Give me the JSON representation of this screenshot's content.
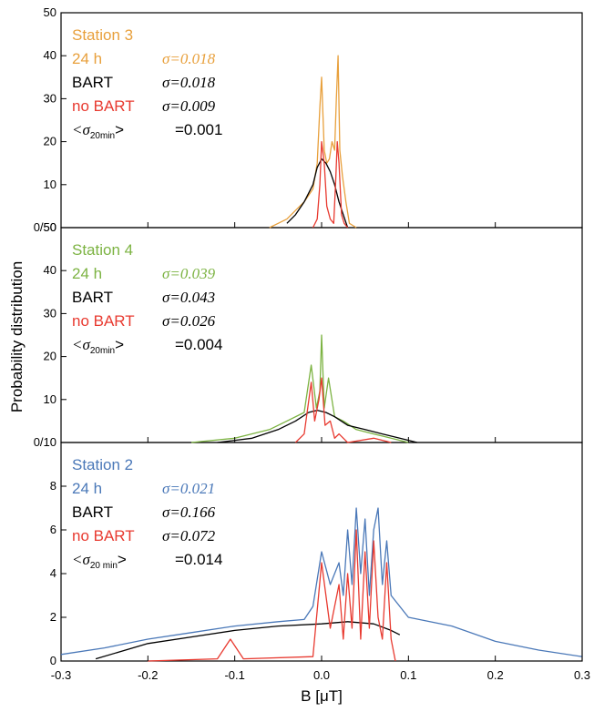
{
  "chart_data": {
    "type": "line",
    "xlabel": "B [μT]",
    "ylabel": "Probability distribution",
    "xlim": [
      -0.3,
      0.3
    ],
    "xticks": [
      "-0.3",
      "-0.2",
      "-0.1",
      "0.0",
      "0.1",
      "0.2",
      "0.3"
    ],
    "grid": false,
    "colors": {
      "24h": "#e8a03c",
      "bart": "#000000",
      "nobart": "#e83a30"
    },
    "panels": [
      {
        "name": "Station 3",
        "ylim": [
          0,
          50
        ],
        "yticks": [
          "10",
          "20",
          "30",
          "40",
          "50"
        ],
        "bottom_tick": "0/50",
        "accent": "#e8a03c",
        "labels": {
          "station": "Station 3",
          "h24": "24 h",
          "h24_sigma": "σ=0.018",
          "bart": "BART",
          "bart_sigma": "σ=0.018",
          "nobart": "no BART",
          "nobart_sigma": "σ=0.009",
          "avg_l": "<σ",
          "avg_sub": "20min",
          "avg_r": ">",
          "avg_val": "=0.001"
        },
        "series": [
          {
            "name": "24 h",
            "color": "#e8a03c",
            "x": [
              -0.06,
              -0.05,
              -0.04,
              -0.03,
              -0.02,
              -0.01,
              -0.005,
              -0.002,
              0.0,
              0.003,
              0.006,
              0.009,
              0.012,
              0.015,
              0.017,
              0.019,
              0.021,
              0.024,
              0.028,
              0.032,
              0.04
            ],
            "y": [
              0,
              1,
              2,
              4,
              6,
              9,
              15,
              28,
              35,
              18,
              15,
              16,
              20,
              18,
              30,
              40,
              18,
              12,
              6,
              1,
              0
            ]
          },
          {
            "name": "BART",
            "color": "#000000",
            "x": [
              -0.04,
              -0.03,
              -0.02,
              -0.01,
              -0.005,
              0.0,
              0.005,
              0.01,
              0.015,
              0.02,
              0.025,
              0.03
            ],
            "y": [
              1,
              3,
              6,
              10,
              14,
              16,
              15,
              13,
              10,
              6,
              3,
              0
            ]
          },
          {
            "name": "no BART",
            "color": "#e83a30",
            "x": [
              -0.01,
              -0.005,
              -0.002,
              0.0,
              0.003,
              0.006,
              0.01,
              0.014,
              0.016,
              0.018,
              0.02,
              0.023,
              0.026,
              0.03
            ],
            "y": [
              0,
              2,
              10,
              20,
              15,
              5,
              2,
              1,
              10,
              20,
              15,
              3,
              1,
              0
            ]
          }
        ]
      },
      {
        "name": "Station 4",
        "ylim": [
          0,
          50
        ],
        "yticks": [
          "10",
          "20",
          "30",
          "40",
          "50"
        ],
        "bottom_tick": "0/10",
        "accent": "#7cb342",
        "labels": {
          "station": "Station 4",
          "h24": "24 h",
          "h24_sigma": "σ=0.039",
          "bart": "BART",
          "bart_sigma": "σ=0.043",
          "nobart": "no BART",
          "nobart_sigma": "σ=0.026",
          "avg_l": "<σ",
          "avg_sub": "20min",
          "avg_r": ">",
          "avg_val": "=0.004"
        },
        "series": [
          {
            "name": "24 h",
            "color": "#7cb342",
            "x": [
              -0.15,
              -0.1,
              -0.06,
              -0.04,
              -0.02,
              -0.012,
              -0.006,
              -0.002,
              0.0,
              0.003,
              0.008,
              0.015,
              0.025,
              0.04,
              0.06,
              0.08,
              0.1
            ],
            "y": [
              0,
              1,
              3,
              5,
              7,
              18,
              8,
              12,
              25,
              8,
              15,
              6,
              5,
              3,
              2,
              1,
              0
            ]
          },
          {
            "name": "BART",
            "color": "#000000",
            "x": [
              -0.12,
              -0.08,
              -0.05,
              -0.03,
              -0.015,
              -0.005,
              0.005,
              0.015,
              0.03,
              0.05,
              0.07,
              0.09,
              0.11
            ],
            "y": [
              0,
              1,
              3,
              5,
              7,
              7.5,
              7,
              6,
              4,
              3,
              2,
              1,
              0
            ]
          },
          {
            "name": "no BART",
            "color": "#e83a30",
            "x": [
              -0.03,
              -0.02,
              -0.012,
              -0.008,
              -0.003,
              0.0,
              0.004,
              0.01,
              0.015,
              0.02,
              0.03,
              0.06,
              0.08
            ],
            "y": [
              0,
              2,
              14,
              5,
              10,
              15,
              4,
              5,
              1,
              2,
              0,
              1,
              0
            ]
          }
        ]
      },
      {
        "name": "Station 2",
        "ylim": [
          0,
          10
        ],
        "yticks": [
          "2",
          "4",
          "6",
          "8"
        ],
        "bottom_tick": "0",
        "accent": "#4a78b8",
        "labels": {
          "station": "Station 2",
          "h24": "24 h",
          "h24_sigma": "σ=0.021",
          "bart": "BART",
          "bart_sigma": "σ=0.166",
          "nobart": "no BART",
          "nobart_sigma": "σ=0.072",
          "avg_l": "<σ",
          "avg_sub": "20 min",
          "avg_r": ">",
          "avg_val": "=0.014"
        },
        "series": [
          {
            "name": "24 h",
            "color": "#4a78b8",
            "x": [
              -0.3,
              -0.25,
              -0.2,
              -0.15,
              -0.1,
              -0.05,
              -0.02,
              -0.01,
              0.0,
              0.01,
              0.02,
              0.025,
              0.03,
              0.035,
              0.04,
              0.045,
              0.05,
              0.055,
              0.06,
              0.065,
              0.07,
              0.075,
              0.08,
              0.1,
              0.15,
              0.2,
              0.25,
              0.3
            ],
            "y": [
              0.3,
              0.6,
              1.0,
              1.3,
              1.6,
              1.8,
              1.9,
              2.5,
              5,
              3.5,
              4.5,
              3,
              6,
              3.5,
              7,
              4,
              6.5,
              3,
              6,
              7,
              3.5,
              5.5,
              3,
              2,
              1.6,
              0.9,
              0.5,
              0.2
            ]
          },
          {
            "name": "BART",
            "color": "#000000",
            "x": [
              -0.26,
              -0.2,
              -0.15,
              -0.1,
              -0.05,
              0.0,
              0.03,
              0.06,
              0.08,
              0.09
            ],
            "y": [
              0.1,
              0.8,
              1.1,
              1.4,
              1.6,
              1.7,
              1.8,
              1.7,
              1.4,
              1.2
            ]
          },
          {
            "name": "no BART",
            "color": "#e83a30",
            "x": [
              -0.2,
              -0.12,
              -0.105,
              -0.09,
              -0.01,
              0.0,
              0.01,
              0.02,
              0.025,
              0.03,
              0.035,
              0.04,
              0.045,
              0.05,
              0.055,
              0.06,
              0.065,
              0.07,
              0.075,
              0.08,
              0.085
            ],
            "y": [
              0,
              0.1,
              1.0,
              0.1,
              0.2,
              4.5,
              1.5,
              3.5,
              1,
              4,
              1.5,
              6,
              1,
              5,
              1.5,
              5.5,
              2,
              1,
              4.5,
              1,
              0
            ]
          }
        ]
      }
    ]
  }
}
